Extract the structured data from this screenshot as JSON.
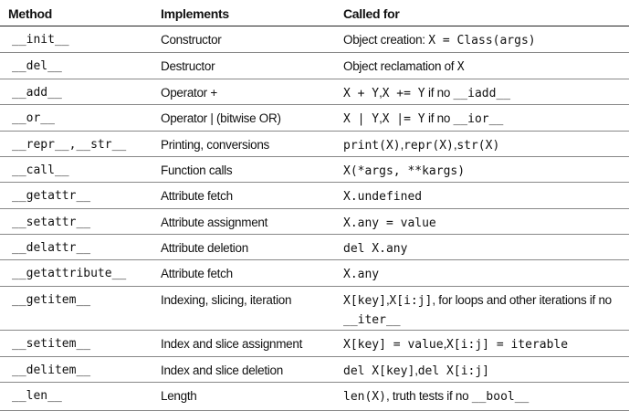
{
  "table": {
    "headers": {
      "method": "Method",
      "implements": "Implements",
      "called_for": "Called for"
    },
    "rows": [
      {
        "method": "__init__",
        "implements": "Constructor",
        "called_for": [
          {
            "t": "Object creation: "
          },
          {
            "t": "X = Class(args)",
            "m": 1
          }
        ]
      },
      {
        "method": "__del__",
        "implements": "Destructor",
        "called_for": [
          {
            "t": "Object reclamation of "
          },
          {
            "t": "X",
            "m": 1
          }
        ]
      },
      {
        "method": "__add__",
        "implements": "Operator +",
        "called_for": [
          {
            "t": "X + Y",
            "m": 1
          },
          {
            "t": ","
          },
          {
            "t": "X += Y",
            "m": 1
          },
          {
            "t": " if no "
          },
          {
            "t": "__iadd__",
            "m": 1
          }
        ]
      },
      {
        "method": "__or__",
        "implements": "Operator | (bitwise OR)",
        "called_for": [
          {
            "t": "X | Y",
            "m": 1
          },
          {
            "t": ","
          },
          {
            "t": "X |= Y",
            "m": 1
          },
          {
            "t": " if no "
          },
          {
            "t": "__ior__",
            "m": 1
          }
        ]
      },
      {
        "method": "__repr__,__str__",
        "implements": "Printing, conversions",
        "called_for": [
          {
            "t": "print(X)",
            "m": 1
          },
          {
            "t": ","
          },
          {
            "t": "repr(X)",
            "m": 1
          },
          {
            "t": ","
          },
          {
            "t": "str(X)",
            "m": 1
          }
        ]
      },
      {
        "method": "__call__",
        "implements": "Function calls",
        "called_for": [
          {
            "t": "X(*args, **kargs)",
            "m": 1
          }
        ]
      },
      {
        "method": "__getattr__",
        "implements": "Attribute fetch",
        "called_for": [
          {
            "t": "X.undefined",
            "m": 1
          }
        ]
      },
      {
        "method": "__setattr__",
        "implements": "Attribute assignment",
        "called_for": [
          {
            "t": "X.any = value",
            "m": 1
          }
        ]
      },
      {
        "method": "__delattr__",
        "implements": "Attribute deletion",
        "called_for": [
          {
            "t": "del X.any",
            "m": 1
          }
        ]
      },
      {
        "method": "__getattribute__",
        "implements": "Attribute fetch",
        "called_for": [
          {
            "t": "X.any",
            "m": 1
          }
        ]
      },
      {
        "method": "__getitem__",
        "implements": "Indexing, slicing, iteration",
        "called_for": [
          {
            "t": "X[key]",
            "m": 1
          },
          {
            "t": ","
          },
          {
            "t": "X[i:j]",
            "m": 1
          },
          {
            "t": ", for loops and other iterations if no"
          }
        ],
        "called_for_line2": [
          {
            "t": "__iter__",
            "m": 1
          }
        ]
      },
      {
        "method": "__setitem__",
        "implements": "Index and slice assignment",
        "called_for": [
          {
            "t": "X[key] = value",
            "m": 1
          },
          {
            "t": ","
          },
          {
            "t": "X[i:j] = iterable",
            "m": 1
          }
        ]
      },
      {
        "method": "__delitem__",
        "implements": "Index and slice deletion",
        "called_for": [
          {
            "t": "del X[key]",
            "m": 1
          },
          {
            "t": ","
          },
          {
            "t": "del X[i:j]",
            "m": 1
          }
        ]
      },
      {
        "method": "__len__",
        "implements": "Length",
        "called_for": [
          {
            "t": "len(X)",
            "m": 1
          },
          {
            "t": ", truth tests if no "
          },
          {
            "t": "__bool__",
            "m": 1
          }
        ]
      }
    ]
  }
}
